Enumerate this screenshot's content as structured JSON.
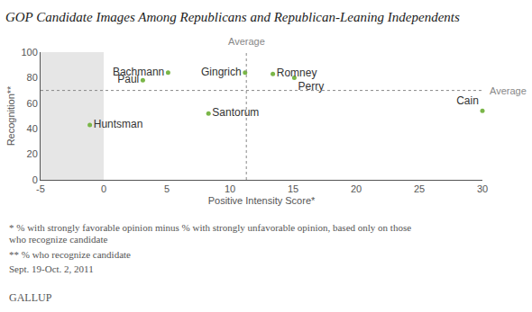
{
  "chart_data": {
    "type": "scatter",
    "title": "GOP Candidate Images Among Republicans and Republican-Leaning Independents",
    "x_label": "Positive Intensity Score*",
    "y_label": "Recognition**",
    "labels": [
      "Bachmann",
      "Paul",
      "Gingrich",
      "Romney",
      "Perry",
      "Huntsman",
      "Santorum",
      "Cain"
    ],
    "x": [
      5.1,
      3.1,
      11.2,
      13.4,
      15.1,
      -1.1,
      8.3,
      30
    ],
    "values": [
      84,
      78,
      84,
      83,
      80,
      43,
      52,
      54
    ],
    "color": "#7ab648",
    "marker": "circle",
    "xlim": [
      -5,
      30
    ],
    "xticks": [
      -5,
      0,
      5,
      10,
      15,
      20,
      25,
      30
    ],
    "ylim": [
      0,
      100
    ],
    "yticks": [
      0,
      20,
      40,
      60,
      80,
      100
    ],
    "grid": false,
    "shaded_x": [
      -5,
      0
    ],
    "reference_lines": [
      {
        "axis": "x",
        "value": 11.3,
        "label": "Average"
      },
      {
        "axis": "y",
        "value": 70,
        "label": "Average"
      }
    ],
    "notes": [
      "* % with strongly favorable opinion minus % with strongly unfavorable opinion, based only on those",
      "who recognize candidate",
      "** % who recognize candidate",
      "Sept. 19-Oct. 2, 2011"
    ],
    "source": "GALLUP"
  }
}
